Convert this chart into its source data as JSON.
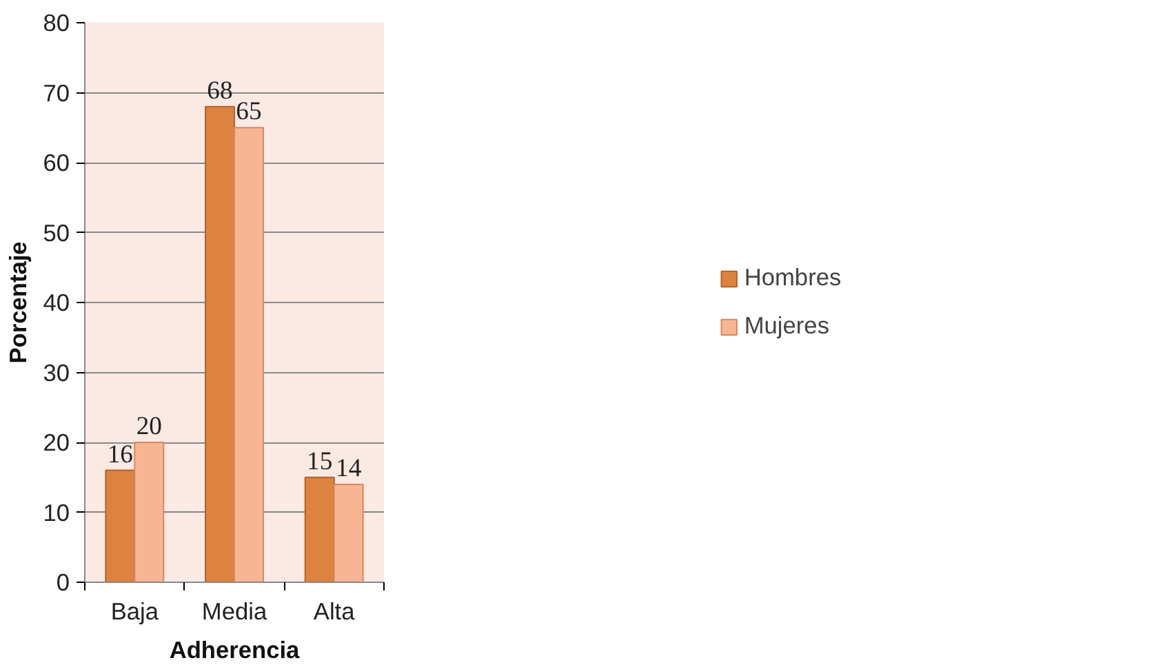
{
  "chart_data": {
    "type": "bar",
    "xlabel": "Adherencia",
    "ylabel": "Porcentaje",
    "categories": [
      "Baja",
      "Media",
      "Alta"
    ],
    "series": [
      {
        "name": "Hombres",
        "color": "#dc843f",
        "values": [
          16,
          68,
          15
        ]
      },
      {
        "name": "Mujeres",
        "color": "#f8b593",
        "values": [
          20,
          65,
          14
        ]
      }
    ],
    "ylim": [
      0,
      80
    ],
    "yticks": [
      0,
      10,
      20,
      30,
      40,
      50,
      60,
      70,
      80
    ],
    "grid": "y",
    "legend": "right",
    "data_labels": true
  }
}
